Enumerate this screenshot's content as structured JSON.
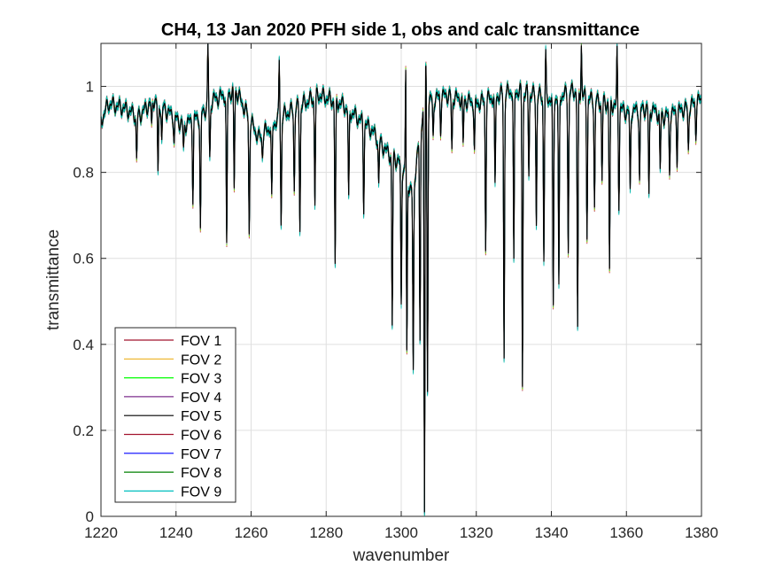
{
  "chart_data": {
    "type": "line",
    "title": "CH4, 13 Jan 2020 PFH side 1, obs and calc transmittance",
    "xlabel": "wavenumber",
    "ylabel": "transmittance",
    "xlim": [
      1220,
      1380
    ],
    "ylim": [
      0,
      1.1
    ],
    "xticks": [
      1220,
      1240,
      1260,
      1280,
      1300,
      1320,
      1340,
      1360,
      1380
    ],
    "yticks": [
      0,
      0.2,
      0.4,
      0.6,
      0.8,
      1
    ],
    "ytick_labels": [
      "0",
      "0.2",
      "0.4",
      "0.6",
      "0.8",
      "1"
    ],
    "grid": true,
    "legend_position": "bottom-left",
    "series": [
      {
        "name": "FOV 1",
        "color": "#a2142f"
      },
      {
        "name": "FOV 2",
        "color": "#edb120"
      },
      {
        "name": "FOV 3",
        "color": "#00ff00"
      },
      {
        "name": "FOV 4",
        "color": "#7e2f8e"
      },
      {
        "name": "FOV 5",
        "color": "#000000"
      },
      {
        "name": "FOV 6",
        "color": "#a2142f"
      },
      {
        "name": "FOV 7",
        "color": "#0000ff"
      },
      {
        "name": "FOV 8",
        "color": "#008000"
      },
      {
        "name": "FOV 9",
        "color": "#00bfbf"
      }
    ],
    "spectrum": {
      "baseline": [
        [
          1220,
          0.92
        ],
        [
          1222,
          0.96
        ],
        [
          1226,
          0.95
        ],
        [
          1230,
          0.93
        ],
        [
          1234,
          0.97
        ],
        [
          1238,
          0.94
        ],
        [
          1242,
          0.91
        ],
        [
          1246,
          0.93
        ],
        [
          1250,
          0.97
        ],
        [
          1256,
          0.99
        ],
        [
          1262,
          0.88
        ],
        [
          1268,
          0.93
        ],
        [
          1272,
          0.95
        ],
        [
          1278,
          0.98
        ],
        [
          1284,
          0.96
        ],
        [
          1288,
          0.93
        ],
        [
          1292,
          0.9
        ],
        [
          1296,
          0.85
        ],
        [
          1300,
          0.82
        ],
        [
          1303,
          0.75
        ],
        [
          1306,
          0.96
        ],
        [
          1308,
          0.97
        ],
        [
          1312,
          0.98
        ],
        [
          1316,
          0.97
        ],
        [
          1320,
          0.96
        ],
        [
          1326,
          0.98
        ],
        [
          1330,
          0.99
        ],
        [
          1336,
          0.98
        ],
        [
          1340,
          0.97
        ],
        [
          1346,
          0.99
        ],
        [
          1350,
          0.97
        ],
        [
          1356,
          0.96
        ],
        [
          1360,
          0.94
        ],
        [
          1366,
          0.95
        ],
        [
          1370,
          0.93
        ],
        [
          1376,
          0.95
        ],
        [
          1380,
          0.97
        ]
      ],
      "absorption_lines": [
        [
          1229.5,
          0.83
        ],
        [
          1233.5,
          0.9
        ],
        [
          1235.2,
          0.79
        ],
        [
          1236.2,
          0.87
        ],
        [
          1239.5,
          0.87
        ],
        [
          1242,
          0.85
        ],
        [
          1244.5,
          0.74
        ],
        [
          1246.5,
          0.66
        ],
        [
          1249,
          0.83
        ],
        [
          1253.5,
          0.62
        ],
        [
          1255.5,
          0.76
        ],
        [
          1259.5,
          0.66
        ],
        [
          1263,
          0.84
        ],
        [
          1265.5,
          0.73
        ],
        [
          1268,
          0.68
        ],
        [
          1271.5,
          0.76
        ],
        [
          1273,
          0.67
        ],
        [
          1277,
          0.73
        ],
        [
          1282.4,
          0.58
        ],
        [
          1286,
          0.73
        ],
        [
          1290,
          0.72
        ],
        [
          1294,
          0.77
        ],
        [
          1297.6,
          0.44
        ],
        [
          1300,
          0.49
        ],
        [
          1301.5,
          0.37
        ],
        [
          1303.2,
          0.33
        ],
        [
          1305,
          0.4
        ],
        [
          1306.2,
          0.0
        ],
        [
          1307,
          0.3
        ],
        [
          1308.5,
          0.88
        ],
        [
          1310.5,
          0.9
        ],
        [
          1313.5,
          0.85
        ],
        [
          1316.5,
          0.86
        ],
        [
          1319.5,
          0.85
        ],
        [
          1322.5,
          0.63
        ],
        [
          1325,
          0.76
        ],
        [
          1327.4,
          0.37
        ],
        [
          1330,
          0.58
        ],
        [
          1332.3,
          0.31
        ],
        [
          1334,
          0.8
        ],
        [
          1336,
          0.68
        ],
        [
          1338,
          0.6
        ],
        [
          1340.5,
          0.48
        ],
        [
          1342,
          0.52
        ],
        [
          1344.5,
          0.62
        ],
        [
          1347,
          0.43
        ],
        [
          1349.5,
          0.66
        ],
        [
          1351.5,
          0.72
        ],
        [
          1353.5,
          0.78
        ],
        [
          1355.5,
          0.57
        ],
        [
          1358,
          0.73
        ],
        [
          1361,
          0.75
        ],
        [
          1363.5,
          0.78
        ],
        [
          1366,
          0.74
        ],
        [
          1369,
          0.8
        ],
        [
          1371.5,
          0.8
        ],
        [
          1373.5,
          0.83
        ],
        [
          1376.5,
          0.85
        ],
        [
          1378.5,
          0.89
        ]
      ],
      "emission_peaks": [
        [
          1248.5,
          1.1
        ],
        [
          1267.5,
          1.06
        ],
        [
          1301.2,
          1.06
        ],
        [
          1306.5,
          1.1
        ],
        [
          1338.5,
          1.07
        ],
        [
          1348,
          1.1
        ],
        [
          1357.5,
          1.08
        ]
      ]
    }
  }
}
